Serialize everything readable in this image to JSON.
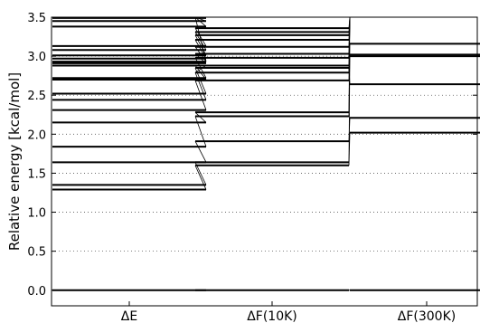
{
  "chart_data": {
    "type": "energy-level-diagram",
    "title": "",
    "xlabel": "",
    "ylabel": "Relative energy [kcal/mol]",
    "ylim": [
      -0.2,
      3.5
    ],
    "yticks": [
      0.0,
      0.5,
      1.0,
      1.5,
      2.0,
      2.5,
      3.0,
      3.5
    ],
    "ytick_labels": [
      "0.0",
      "0.5",
      "1.0",
      "1.5",
      "2.0",
      "2.5",
      "3.0",
      "3.5"
    ],
    "grid": "horizontal dotted at y ticks",
    "categories": [
      "ΔE",
      "ΔF(10K)",
      "ΔF(300K)"
    ],
    "level_color": "#000000",
    "connector_color": "#000000",
    "levels": [
      {
        "x": "ΔE",
        "values": [
          0.0,
          1.29,
          1.35,
          1.64,
          1.84,
          2.15,
          2.31,
          2.44,
          2.52,
          2.7,
          2.72,
          2.88,
          2.91,
          2.93,
          2.97,
          3.01,
          3.08,
          3.13,
          3.38,
          3.45,
          3.49
        ]
      },
      {
        "x": "ΔF(10K)",
        "values": [
          0.0,
          1.6,
          1.64,
          1.91,
          2.23,
          2.28,
          2.69,
          2.79,
          2.85,
          2.88,
          2.98,
          3.03,
          3.12,
          3.21,
          3.27,
          3.31,
          3.36
        ]
      },
      {
        "x": "ΔF(300K)",
        "values": [
          0.0,
          2.02,
          2.21,
          2.64,
          3.0,
          3.02,
          3.16
        ]
      }
    ],
    "connections": [
      {
        "from": "ΔE",
        "to": "ΔF(10K)",
        "pairs": [
          [
            0.0,
            0.0
          ],
          [
            1.29,
            1.6
          ],
          [
            1.35,
            1.64
          ],
          [
            1.64,
            1.91
          ],
          [
            1.84,
            2.23
          ],
          [
            2.15,
            2.28
          ],
          [
            2.31,
            2.69
          ],
          [
            2.44,
            2.79
          ],
          [
            2.52,
            2.85
          ],
          [
            2.7,
            2.88
          ],
          [
            2.72,
            2.98
          ],
          [
            2.88,
            2.79
          ],
          [
            2.91,
            3.03
          ],
          [
            2.93,
            3.12
          ],
          [
            2.97,
            3.21
          ],
          [
            3.01,
            3.27
          ],
          [
            3.08,
            3.31
          ],
          [
            3.13,
            3.36
          ],
          [
            3.38,
            3.5
          ],
          [
            3.45,
            3.5
          ],
          [
            3.49,
            3.5
          ],
          [
            2.93,
            3.5
          ]
        ]
      },
      {
        "from": "ΔF(10K)",
        "to": "ΔF(300K)",
        "pairs": [
          [
            0.0,
            0.0
          ],
          [
            1.6,
            2.02
          ],
          [
            1.64,
            3.02
          ],
          [
            1.91,
            2.21
          ],
          [
            2.23,
            3.16
          ],
          [
            2.28,
            3.5
          ],
          [
            2.69,
            3.5
          ],
          [
            2.79,
            3.5
          ],
          [
            2.85,
            2.64
          ],
          [
            2.88,
            3.5
          ],
          [
            2.98,
            3.5
          ],
          [
            3.03,
            3.5
          ],
          [
            3.12,
            3.5
          ],
          [
            3.21,
            3.5
          ],
          [
            3.27,
            3.5
          ],
          [
            3.31,
            3.5
          ],
          [
            3.36,
            3.5
          ]
        ]
      }
    ]
  }
}
